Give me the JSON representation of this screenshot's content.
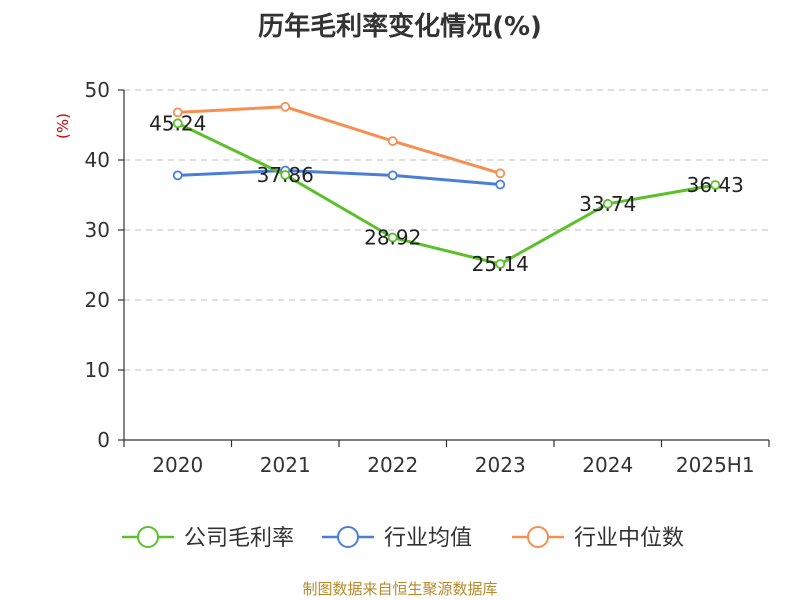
{
  "title": "历年毛利率变化情况(%)",
  "footer": "制图数据来自恒生聚源数据库",
  "chart_data": {
    "type": "line",
    "categories": [
      "2020",
      "2021",
      "2022",
      "2023",
      "2024",
      "2025H1"
    ],
    "ylabel": "(%)",
    "ylim": [
      0,
      50
    ],
    "yticks": [
      0,
      10,
      20,
      30,
      40,
      50
    ],
    "grid": true,
    "legend_position": "bottom",
    "series": [
      {
        "name": "公司毛利率",
        "color": "#5cc02b",
        "values": [
          45.24,
          37.86,
          28.92,
          25.14,
          33.74,
          36.43
        ],
        "labels": [
          "45.24",
          "37.86",
          "28.92",
          "25.14",
          "33.74",
          "36.43"
        ]
      },
      {
        "name": "行业均值",
        "color": "#4a7fd9",
        "values": [
          37.8,
          38.5,
          37.8,
          36.5,
          null,
          null
        ]
      },
      {
        "name": "行业中位数",
        "color": "#f58f52",
        "values": [
          46.8,
          47.6,
          42.7,
          38.1,
          null,
          null
        ]
      }
    ]
  }
}
